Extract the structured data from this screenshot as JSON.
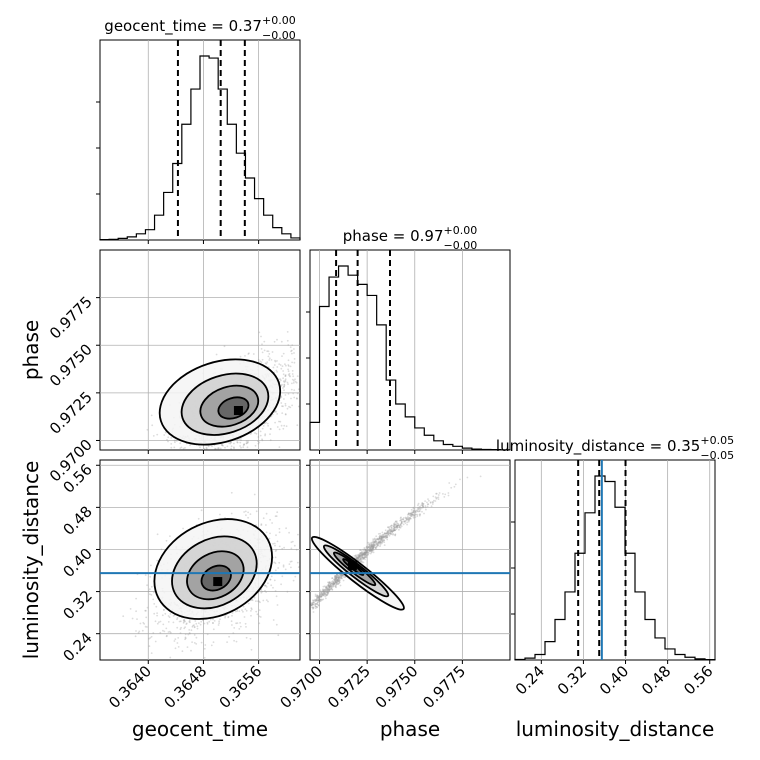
{
  "chart_data": {
    "type": "corner",
    "parameters": [
      "geocent_time",
      "phase",
      "luminosity_distance"
    ],
    "titles": {
      "geocent_time": {
        "prefix": "geocent_time = 0.37",
        "sup": "+0.00",
        "sub": "−0.00"
      },
      "phase": {
        "prefix": "phase = 0.97",
        "sup": "+0.00",
        "sub": "−0.00"
      },
      "luminosity_distance": {
        "prefix": "luminosity_distance = 0.35",
        "sup": "+0.05",
        "sub": "−0.05"
      }
    },
    "axes": {
      "geocent_time": {
        "label": "geocent_time",
        "lim": [
          0.3633,
          0.3662
        ],
        "ticks": [
          0.364,
          0.3648,
          0.3656
        ],
        "tick_labels": [
          "0.3640",
          "0.3648",
          "0.3656"
        ]
      },
      "phase": {
        "label": "phase",
        "lim": [
          0.9695,
          0.98
        ],
        "ticks": [
          0.97,
          0.9725,
          0.975,
          0.9775
        ],
        "tick_labels": [
          "0.9700",
          "0.9725",
          "0.9750",
          "0.9775"
        ]
      },
      "luminosity_distance": {
        "label": "luminosity_distance",
        "lim": [
          0.19,
          0.57
        ],
        "ticks": [
          0.24,
          0.32,
          0.4,
          0.48,
          0.56
        ],
        "tick_labels": [
          "0.24",
          "0.32",
          "0.40",
          "0.48",
          "0.56"
        ]
      }
    },
    "histograms": {
      "geocent_time": {
        "bins": [
          0.3633,
          0.3662
        ],
        "counts": [
          0.2,
          0.3,
          0.8,
          1.5,
          3,
          5,
          12,
          23,
          37,
          56,
          73,
          89,
          88,
          73,
          56,
          42,
          30,
          20,
          12,
          6,
          3,
          1
        ]
      },
      "phase": {
        "bins": [
          0.9695,
          0.98
        ],
        "counts": [
          15,
          78,
          94,
          100,
          95,
          90,
          84,
          68,
          38,
          25,
          18,
          12,
          8,
          5,
          3,
          2,
          1,
          0.5,
          0.3,
          0.2,
          0.1
        ]
      },
      "luminosity_distance": {
        "bins": [
          0.19,
          0.57
        ],
        "counts": [
          0.3,
          1,
          3,
          10,
          22,
          37,
          58,
          80,
          100,
          97,
          83,
          58,
          37,
          22,
          12,
          6,
          3,
          1.5,
          0.6,
          0.2
        ]
      }
    },
    "quantiles": {
      "geocent_time": [
        0.36443,
        0.36505,
        0.3654
      ],
      "phase": [
        0.97087,
        0.972,
        0.9737
      ],
      "luminosity_distance": [
        0.31,
        0.35,
        0.4
      ]
    },
    "truth": {
      "luminosity_distance": 0.355
    },
    "density_peaks": {
      "phase_vs_geocent_time": {
        "x": 0.3653,
        "y": 0.9716
      },
      "luminosity_distance_vs_geocent_time": {
        "x": 0.365,
        "y": 0.34
      },
      "luminosity_distance_vs_phase": {
        "x": 0.9717,
        "y": 0.37
      }
    },
    "colors": {
      "line": "#000000",
      "truth": "#1f77b4",
      "grid": "#b0b0b0",
      "sample": "#9a9a9a"
    },
    "grid": true
  }
}
